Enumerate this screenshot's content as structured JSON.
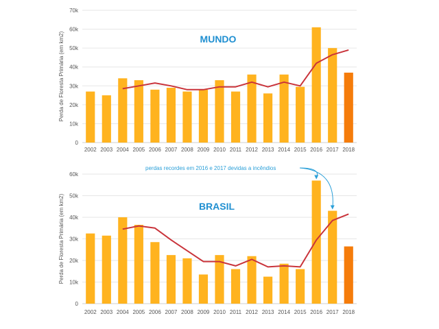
{
  "colors": {
    "bar": "#ffb31f",
    "bar_last": "#f57c0a",
    "line": "#c9333a",
    "grid": "#e6e6e6",
    "axis": "#cfcfcf",
    "title": "#1f8fd1",
    "annotation": "#2a9fd8"
  },
  "chart_data": [
    {
      "type": "bar",
      "title": "MUNDO",
      "ylabel": "Perda de Floresta Primária (em km2)",
      "categories": [
        "2002",
        "2003",
        "2004",
        "2005",
        "2006",
        "2007",
        "2008",
        "2009",
        "2010",
        "2011",
        "2012",
        "2013",
        "2014",
        "2015",
        "2016",
        "2017",
        "2018"
      ],
      "ylim": [
        0,
        70000
      ],
      "yticks": [
        "0",
        "10k",
        "20k",
        "30k",
        "40k",
        "50k",
        "60k",
        "70k"
      ],
      "series": [
        {
          "kind": "bar",
          "values": [
            27000,
            25000,
            34000,
            33000,
            28000,
            29000,
            27000,
            28000,
            33000,
            27000,
            36000,
            26000,
            36000,
            29500,
            61000,
            50000,
            37000
          ]
        },
        {
          "kind": "line",
          "values": [
            null,
            null,
            28500,
            30000,
            31500,
            30000,
            28000,
            28000,
            29500,
            29500,
            32000,
            29500,
            32000,
            30000,
            42000,
            46500,
            49000
          ]
        }
      ],
      "grid": true
    },
    {
      "type": "bar",
      "title": "BRASIL",
      "ylabel": "Perda de Floresta Primária (em km2)",
      "categories": [
        "2002",
        "2003",
        "2004",
        "2005",
        "2006",
        "2007",
        "2008",
        "2009",
        "2010",
        "2011",
        "2012",
        "2013",
        "2014",
        "2015",
        "2016",
        "2017",
        "2018"
      ],
      "ylim": [
        0,
        60000
      ],
      "yticks": [
        "0",
        "10k",
        "20k",
        "30k",
        "40k",
        "50k",
        "60k"
      ],
      "series": [
        {
          "kind": "bar",
          "values": [
            32500,
            31500,
            40000,
            36500,
            28500,
            22500,
            21000,
            13500,
            22500,
            16000,
            22000,
            12500,
            18500,
            16000,
            57000,
            43000,
            26500
          ]
        },
        {
          "kind": "line",
          "values": [
            null,
            null,
            34500,
            36000,
            35000,
            29500,
            24500,
            19500,
            19500,
            17500,
            20500,
            17000,
            17500,
            17000,
            29500,
            38500,
            41500
          ]
        }
      ],
      "annotation": "perdas recordes em 2016 e 2017 devidas a incêndios",
      "grid": true
    }
  ]
}
